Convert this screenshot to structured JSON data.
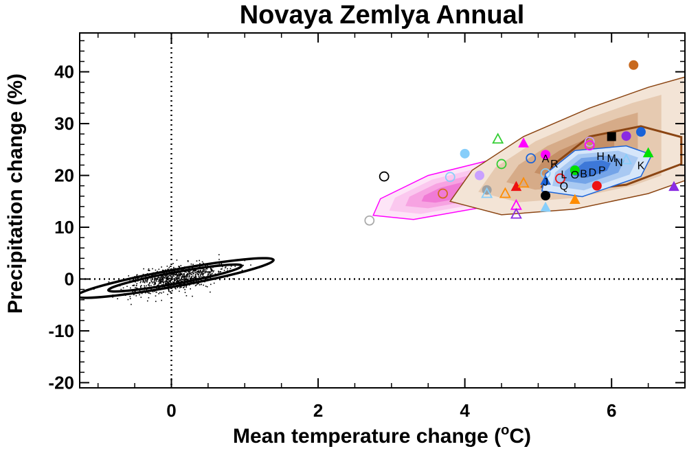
{
  "chart_data": {
    "type": "scatter",
    "title": "Novaya Zemlya Annual",
    "xlabel_main": "Mean temperature change (",
    "xlabel_sup": "o",
    "xlabel_end": "C)",
    "ylabel": "Precipitation change (%)",
    "xlim": [
      -1.25,
      7.0
    ],
    "ylim": [
      -21,
      47.5
    ],
    "x_ticks": [
      0,
      2,
      4,
      6
    ],
    "y_ticks": [
      -20,
      -10,
      0,
      10,
      20,
      30,
      40
    ],
    "reference_lines": {
      "x": 0,
      "y": 0,
      "style": "dotted"
    },
    "natural_variability": {
      "center": [
        0.05,
        0.2
      ],
      "noise_ellipses": [
        {
          "rx": 0.42,
          "ry": 1.1,
          "slope": 2.6
        },
        {
          "rx": 0.62,
          "ry": 1.6,
          "slope": 2.6
        }
      ],
      "scatter_points": 900
    },
    "ensemble_distributions": [
      {
        "name": "magenta",
        "color": "#ff00ff",
        "fills": [
          "#fde5f7",
          "#fbc8ef",
          "#f7a3e2",
          "#f07ad5"
        ],
        "center": [
          3.75,
          16.4
        ],
        "polygon": [
          [
            2.75,
            12.3
          ],
          [
            3.3,
            11.5
          ],
          [
            4.5,
            14.5
          ],
          [
            5.8,
            20.5
          ],
          [
            6.4,
            25.0
          ],
          [
            6.15,
            27.2
          ],
          [
            5.5,
            26.5
          ],
          [
            4.5,
            23.5
          ],
          [
            3.5,
            20.0
          ],
          [
            2.85,
            15.5
          ]
        ]
      },
      {
        "name": "brown",
        "color": "#8b4513",
        "fills": [
          "#f3e4d6",
          "#e6cab1",
          "#d6ab88",
          "#c58f66"
        ],
        "inner_contour": [
          [
            5.05,
            17.8
          ],
          [
            5.3,
            16.7
          ],
          [
            6.2,
            18.2
          ],
          [
            6.95,
            22.2
          ],
          [
            6.95,
            27.4
          ],
          [
            6.4,
            29.5
          ],
          [
            5.7,
            27.5
          ],
          [
            5.2,
            22.0
          ]
        ],
        "polygon": [
          [
            3.8,
            15.0
          ],
          [
            4.5,
            12.4
          ],
          [
            5.5,
            13.5
          ],
          [
            6.5,
            16.5
          ],
          [
            7.0,
            19.0
          ],
          [
            7.0,
            39.0
          ],
          [
            6.5,
            37.0
          ],
          [
            5.7,
            33.0
          ],
          [
            4.8,
            27.5
          ],
          [
            4.1,
            21.0
          ]
        ]
      },
      {
        "name": "blue",
        "color": "#1a63d8",
        "fills": [
          "#d6e6fa",
          "#a9c9f2",
          "#74a4e8",
          "#3d78d8"
        ],
        "center": [
          5.7,
          21.5
        ],
        "polygon": [
          [
            5.05,
            17.0
          ],
          [
            5.6,
            15.9
          ],
          [
            6.4,
            19.8
          ],
          [
            6.55,
            24.0
          ],
          [
            6.2,
            25.7
          ],
          [
            5.5,
            24.8
          ],
          [
            5.1,
            20.3
          ]
        ]
      }
    ],
    "model_points": [
      {
        "x": 2.7,
        "y": 11.3,
        "marker": "circle-open",
        "color": "#aaaaaa"
      },
      {
        "x": 2.9,
        "y": 19.8,
        "marker": "circle-open",
        "color": "#000000"
      },
      {
        "x": 3.7,
        "y": 16.5,
        "marker": "circle-open",
        "color": "#d2691e"
      },
      {
        "x": 3.8,
        "y": 19.7,
        "marker": "circle-open",
        "color": "#87cefa"
      },
      {
        "x": 4.0,
        "y": 24.2,
        "marker": "circle-filled",
        "color": "#87cefa"
      },
      {
        "x": 4.2,
        "y": 20.0,
        "marker": "circle-filled",
        "color": "#c9a0ff"
      },
      {
        "x": 4.3,
        "y": 17.2,
        "marker": "circle-filled",
        "color": "#a0a0a0"
      },
      {
        "x": 4.3,
        "y": 16.5,
        "marker": "triangle-open",
        "color": "#87cefa"
      },
      {
        "x": 4.45,
        "y": 27.0,
        "marker": "triangle-open",
        "color": "#32cd32"
      },
      {
        "x": 4.5,
        "y": 22.2,
        "marker": "circle-open",
        "color": "#32cd32"
      },
      {
        "x": 4.55,
        "y": 16.5,
        "marker": "triangle-open",
        "color": "#ff8c00"
      },
      {
        "x": 4.7,
        "y": 14.2,
        "marker": "triangle-open",
        "color": "#ff00ff"
      },
      {
        "x": 4.7,
        "y": 12.5,
        "marker": "triangle-open",
        "color": "#8a2be2"
      },
      {
        "x": 4.7,
        "y": 17.8,
        "marker": "triangle-filled",
        "color": "#ee1111"
      },
      {
        "x": 4.8,
        "y": 26.2,
        "marker": "triangle-filled",
        "color": "#ff00ff"
      },
      {
        "x": 4.8,
        "y": 18.5,
        "marker": "triangle-open",
        "color": "#ff8c00"
      },
      {
        "x": 4.9,
        "y": 23.3,
        "marker": "circle-open",
        "color": "#1a63d8"
      },
      {
        "x": 5.1,
        "y": 24.0,
        "marker": "circle-filled",
        "color": "#ff00ff"
      },
      {
        "x": 5.1,
        "y": 20.4,
        "marker": "circle-open",
        "color": "#87cefa"
      },
      {
        "x": 5.1,
        "y": 19.0,
        "marker": "triangle-filled",
        "color": "#1a63d8"
      },
      {
        "x": 5.1,
        "y": 16.1,
        "marker": "circle-filled",
        "color": "#000000"
      },
      {
        "x": 5.1,
        "y": 13.8,
        "marker": "triangle-filled",
        "color": "#87cefa"
      },
      {
        "x": 5.3,
        "y": 19.4,
        "marker": "circle-open",
        "color": "#ee1111"
      },
      {
        "x": 5.5,
        "y": 21.0,
        "marker": "circle-filled",
        "color": "#00e000"
      },
      {
        "x": 5.5,
        "y": 15.3,
        "marker": "triangle-filled",
        "color": "#ff8c00"
      },
      {
        "x": 5.7,
        "y": 26.5,
        "marker": "circle-open",
        "color": "#c9a0ff"
      },
      {
        "x": 5.7,
        "y": 25.8,
        "marker": "circle-open",
        "color": "#ff00ff"
      },
      {
        "x": 5.8,
        "y": 18.0,
        "marker": "circle-filled",
        "color": "#ee1111"
      },
      {
        "x": 6.0,
        "y": 27.5,
        "marker": "square-filled",
        "color": "#000000"
      },
      {
        "x": 6.2,
        "y": 27.6,
        "marker": "circle-filled",
        "color": "#8a2be2"
      },
      {
        "x": 6.2,
        "y": 23.0,
        "marker": "triangle-open",
        "color": "#87cefa"
      },
      {
        "x": 6.3,
        "y": 41.3,
        "marker": "circle-filled",
        "color": "#c8691e"
      },
      {
        "x": 6.4,
        "y": 28.4,
        "marker": "circle-filled",
        "color": "#1a63d8"
      },
      {
        "x": 6.5,
        "y": 24.3,
        "marker": "triangle-filled",
        "color": "#00e000"
      },
      {
        "x": 6.85,
        "y": 17.8,
        "marker": "triangle-filled",
        "color": "#8a2be2"
      }
    ],
    "model_letters": [
      {
        "label": "A",
        "x": 5.1,
        "y": 22.5
      },
      {
        "label": "R",
        "x": 5.22,
        "y": 21.5
      },
      {
        "label": "L",
        "x": 5.35,
        "y": 19.5
      },
      {
        "label": "O",
        "x": 5.5,
        "y": 19.4
      },
      {
        "label": "B",
        "x": 5.62,
        "y": 19.6
      },
      {
        "label": "D",
        "x": 5.74,
        "y": 19.9
      },
      {
        "label": "P",
        "x": 5.87,
        "y": 20.3
      },
      {
        "label": "H",
        "x": 5.85,
        "y": 23.0
      },
      {
        "label": "M",
        "x": 6.0,
        "y": 22.6
      },
      {
        "label": "N",
        "x": 6.1,
        "y": 21.8
      },
      {
        "label": "K",
        "x": 6.4,
        "y": 21.2
      },
      {
        "label": "J",
        "x": 5.1,
        "y": 18.0
      },
      {
        "label": "Q",
        "x": 5.35,
        "y": 17.2
      }
    ]
  }
}
